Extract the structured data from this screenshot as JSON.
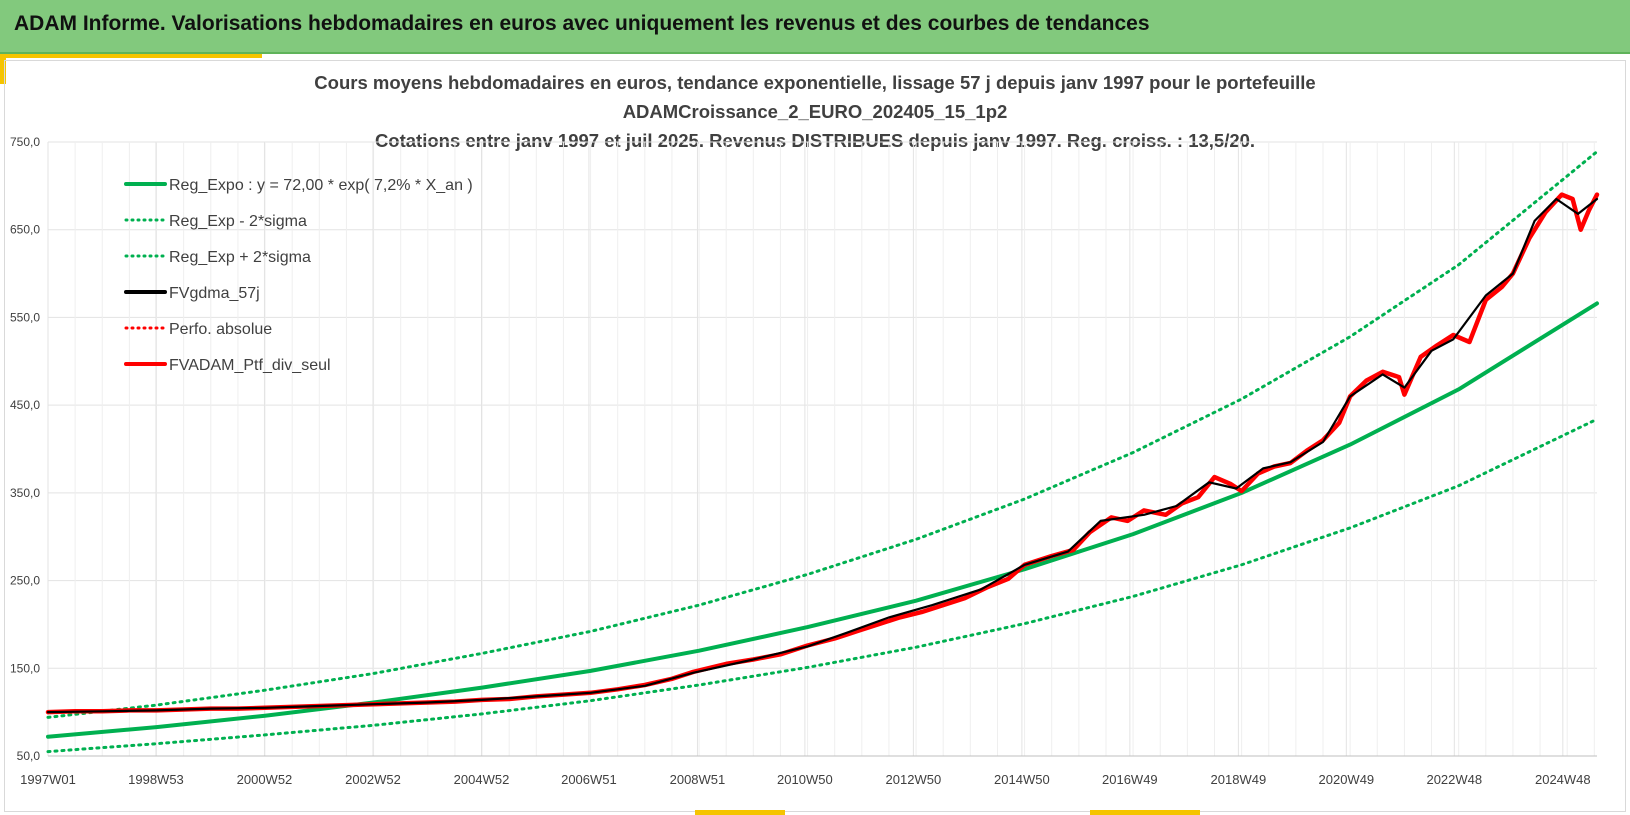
{
  "header": {
    "title": "ADAM Informe. Valorisations hebdomadaires en euros avec uniquement les revenus et des courbes de tendances"
  },
  "colors": {
    "header_bg": "#82c97d",
    "accent": "#f5c400",
    "green": "#00b050",
    "black": "#000000",
    "red": "#ff0000",
    "grid": "#e6e6e6"
  },
  "chart_data": {
    "type": "line",
    "title_lines": [
      "Cours moyens hebdomadaires en euros, tendance exponentielle, lissage 57 j depuis janv 1997 pour le portefeuille",
      "ADAMCroissance_2_EURO_202405_15_1p2",
      "Cotations entre janv 1997 et juil 2025. Revenus DISTRIBUES depuis janv 1997. Reg. croiss. : 13,5/20."
    ],
    "xlabel": "",
    "ylabel": "",
    "xlim": [
      1997.0,
      2025.55
    ],
    "ylim": [
      50,
      750
    ],
    "y_ticks": [
      50,
      150,
      250,
      350,
      450,
      550,
      650,
      750
    ],
    "y_tick_labels": [
      "50,0",
      "150,0",
      "250,0",
      "350,0",
      "450,0",
      "550,0",
      "650,0",
      "750,0"
    ],
    "x_ticks": [
      1997.0,
      1998.99,
      2000.99,
      2002.99,
      2004.99,
      2006.97,
      2008.97,
      2010.95,
      2012.95,
      2014.95,
      2016.94,
      2018.94,
      2020.93,
      2022.92,
      2024.92
    ],
    "x_tick_labels": [
      "1997W01",
      "1998W53",
      "2000W52",
      "2002W52",
      "2004W52",
      "2006W51",
      "2008W51",
      "2010W50",
      "2012W50",
      "2014W50",
      "2016W49",
      "2018W49",
      "2020W49",
      "2022W48",
      "2024W48"
    ],
    "grid": true,
    "legend_position": "top-left",
    "legend": [
      {
        "label": "Reg_Expo : y = 72,00 * exp( 7,2% *  X_an )",
        "color": "#00b050",
        "style": "solid"
      },
      {
        "label": "Reg_Exp - 2*sigma",
        "color": "#00b050",
        "style": "dotted"
      },
      {
        "label": "Reg_Exp + 2*sigma",
        "color": "#00b050",
        "style": "dotted"
      },
      {
        "label": "FVgdma_57j",
        "color": "#000000",
        "style": "solid"
      },
      {
        "label": "Perfo. absolue",
        "color": "#ff0000",
        "style": "dotted"
      },
      {
        "label": "FVADAM_Ptf_div_seul",
        "color": "#ff0000",
        "style": "solid"
      }
    ],
    "series": [
      {
        "name": "Reg_Expo : y = 72,00 * exp( 7,2% *  X_an )",
        "color": "#00b050",
        "style": "solid",
        "x": [
          1997.0,
          1999.0,
          2001.0,
          2003.0,
          2005.0,
          2007.0,
          2009.0,
          2011.0,
          2013.0,
          2015.0,
          2017.0,
          2019.0,
          2021.0,
          2023.0,
          2025.55
        ],
        "y": [
          72,
          83,
          96,
          111,
          128,
          147,
          170,
          197,
          227,
          263,
          303,
          350,
          405,
          468,
          566
        ]
      },
      {
        "name": "Reg_Exp - 2*sigma",
        "color": "#00b050",
        "style": "dotted",
        "x": [
          1997.0,
          1999.0,
          2001.0,
          2003.0,
          2005.0,
          2007.0,
          2009.0,
          2011.0,
          2013.0,
          2015.0,
          2017.0,
          2019.0,
          2021.0,
          2023.0,
          2025.55
        ],
        "y": [
          55,
          64,
          74,
          85,
          98,
          113,
          131,
          151,
          174,
          201,
          232,
          268,
          310,
          358,
          434
        ]
      },
      {
        "name": "Reg_Exp + 2*sigma",
        "color": "#00b050",
        "style": "dotted",
        "x": [
          1997.0,
          1999.0,
          2001.0,
          2003.0,
          2005.0,
          2007.0,
          2009.0,
          2011.0,
          2013.0,
          2015.0,
          2017.0,
          2019.0,
          2021.0,
          2023.0,
          2025.55
        ],
        "y": [
          94,
          108,
          125,
          144,
          167,
          192,
          222,
          257,
          297,
          343,
          396,
          457,
          528,
          610,
          739
        ]
      },
      {
        "name": "FVgdma_57j",
        "color": "#000000",
        "style": "solid",
        "x": [
          1997.0,
          1998.0,
          1999.0,
          2000.0,
          2001.0,
          2002.0,
          2003.0,
          2004.0,
          2005.0,
          2006.0,
          2007.0,
          2008.0,
          2008.9,
          2010.0,
          2011.0,
          2011.7,
          2012.5,
          2013.3,
          2014.2,
          2015.0,
          2015.8,
          2016.4,
          2017.2,
          2017.8,
          2018.4,
          2018.9,
          2019.4,
          2019.9,
          2020.5,
          2021.0,
          2021.6,
          2022.0,
          2022.5,
          2022.9,
          2023.5,
          2024.0,
          2024.4,
          2024.8,
          2025.2,
          2025.55
        ],
        "y": [
          100,
          101,
          102,
          104,
          105,
          107,
          109,
          111,
          114,
          118,
          122,
          130,
          145,
          160,
          175,
          190,
          208,
          222,
          240,
          268,
          283,
          318,
          325,
          335,
          362,
          355,
          378,
          385,
          408,
          460,
          485,
          470,
          512,
          525,
          575,
          600,
          660,
          685,
          668,
          685
        ]
      },
      {
        "name": "Perfo. absolue",
        "color": "#ff0000",
        "style": "dotted",
        "x": [
          1997.0,
          1998.0,
          1999.0,
          2000.0,
          2001.0,
          2002.0,
          2003.0,
          2004.0,
          2005.0,
          2006.0,
          2007.0,
          2008.0,
          2008.9,
          2010.0,
          2011.0,
          2011.7,
          2012.5,
          2013.3,
          2014.2,
          2015.0,
          2015.8,
          2016.4,
          2017.2,
          2017.8,
          2018.4,
          2018.9,
          2019.4,
          2019.9,
          2020.5,
          2021.0,
          2021.6,
          2022.0,
          2022.5,
          2022.9,
          2023.5,
          2024.0,
          2024.4,
          2024.8,
          2025.2,
          2025.55
        ],
        "y": [
          100,
          101,
          102,
          104,
          105,
          107,
          109,
          111,
          114,
          118,
          122,
          130,
          145,
          160,
          175,
          190,
          208,
          222,
          240,
          268,
          283,
          318,
          325,
          335,
          362,
          355,
          378,
          385,
          408,
          460,
          485,
          470,
          512,
          525,
          575,
          600,
          660,
          685,
          668,
          685
        ]
      },
      {
        "name": "FVADAM_Ptf_div_seul",
        "color": "#ff0000",
        "style": "solid",
        "x": [
          1997.0,
          1997.5,
          1998.0,
          1998.5,
          1999.0,
          1999.5,
          2000.0,
          2000.5,
          2001.0,
          2001.5,
          2002.0,
          2002.5,
          2003.0,
          2003.5,
          2004.0,
          2004.5,
          2005.0,
          2005.5,
          2006.0,
          2006.5,
          2007.0,
          2007.5,
          2008.0,
          2008.5,
          2008.9,
          2009.5,
          2010.0,
          2010.5,
          2011.0,
          2011.5,
          2011.9,
          2012.3,
          2012.7,
          2013.1,
          2013.5,
          2013.9,
          2014.3,
          2014.7,
          2015.0,
          2015.5,
          2015.9,
          2016.2,
          2016.6,
          2016.9,
          2017.2,
          2017.6,
          2017.9,
          2018.2,
          2018.5,
          2018.8,
          2019.0,
          2019.3,
          2019.6,
          2019.9,
          2020.2,
          2020.5,
          2020.8,
          2021.0,
          2021.3,
          2021.6,
          2021.9,
          2022.0,
          2022.3,
          2022.6,
          2022.9,
          2023.2,
          2023.5,
          2023.8,
          2024.0,
          2024.3,
          2024.6,
          2024.9,
          2025.1,
          2025.25,
          2025.4,
          2025.55
        ],
        "y": [
          100,
          101,
          101,
          102,
          102,
          103,
          104,
          104,
          105,
          106,
          107,
          108,
          109,
          110,
          111,
          112,
          114,
          115,
          118,
          120,
          122,
          126,
          131,
          138,
          146,
          155,
          160,
          166,
          176,
          184,
          192,
          200,
          208,
          214,
          222,
          230,
          242,
          252,
          268,
          278,
          285,
          305,
          322,
          318,
          330,
          325,
          338,
          345,
          368,
          360,
          352,
          372,
          380,
          384,
          398,
          410,
          430,
          460,
          478,
          488,
          482,
          462,
          505,
          518,
          530,
          522,
          570,
          585,
          600,
          640,
          670,
          690,
          685,
          650,
          672,
          690
        ]
      }
    ]
  }
}
